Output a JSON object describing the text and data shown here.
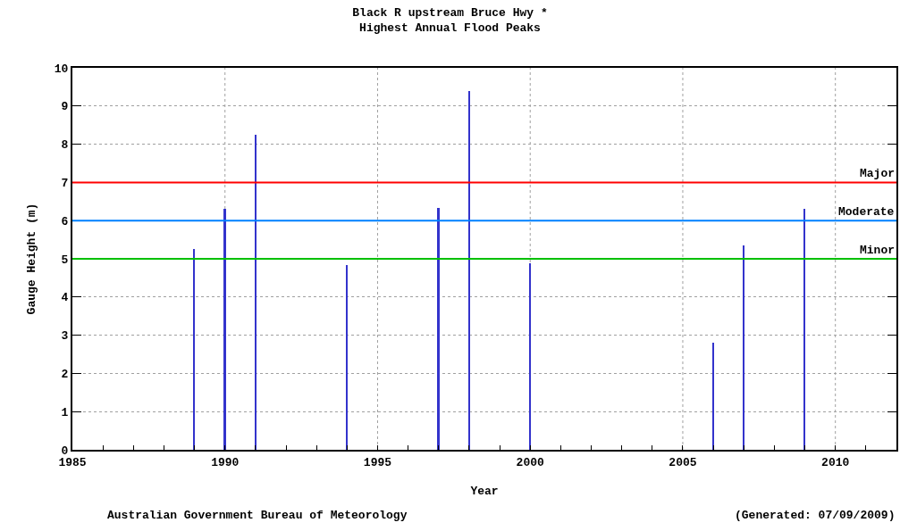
{
  "chart_data": {
    "type": "bar",
    "title": "Black R upstream Bruce Hwy *\nHighest Annual Flood Peaks",
    "xlabel": "Year",
    "ylabel": "Gauge Height (m)",
    "x": [
      1989,
      1990,
      1991,
      1994,
      1997,
      1998,
      2000,
      2006,
      2007,
      2009
    ],
    "values": [
      5.25,
      6.3,
      8.25,
      4.83,
      6.34,
      9.39,
      4.88,
      2.8,
      5.35,
      6.3
    ],
    "color": "#3333cc",
    "xlim": [
      1985,
      2012
    ],
    "ylim": [
      0,
      10
    ],
    "xticks": [
      1985,
      {
        "value": 1986,
        "label": null
      },
      {
        "value": 1987,
        "label": null
      },
      {
        "value": 1988,
        "label": null
      },
      {
        "value": 1989,
        "label": null
      },
      1990,
      {
        "value": 1991,
        "label": null
      },
      {
        "value": 1992,
        "label": null
      },
      {
        "value": 1993,
        "label": null
      },
      {
        "value": 1994,
        "label": null
      },
      1995,
      {
        "value": 1996,
        "label": null
      },
      {
        "value": 1997,
        "label": null
      },
      {
        "value": 1998,
        "label": null
      },
      {
        "value": 1999,
        "label": null
      },
      2000,
      {
        "value": 2001,
        "label": null
      },
      {
        "value": 2002,
        "label": null
      },
      {
        "value": 2003,
        "label": null
      },
      {
        "value": 2004,
        "label": null
      },
      2005,
      {
        "value": 2006,
        "label": null
      },
      {
        "value": 2007,
        "label": null
      },
      {
        "value": 2008,
        "label": null
      },
      {
        "value": 2009,
        "label": null
      },
      2010,
      {
        "value": 2011,
        "label": null
      }
    ],
    "yticks": [
      0,
      1,
      2,
      3,
      4,
      5,
      6,
      7,
      8,
      9,
      10
    ],
    "grid": true,
    "ref_lines": [
      {
        "axis": "y",
        "value": 7,
        "label": "Major",
        "color": "#ff0000"
      },
      {
        "axis": "y",
        "value": 6,
        "label": "Moderate",
        "color": "#0080ff"
      },
      {
        "axis": "y",
        "value": 5,
        "label": "Minor",
        "color": "#00c000"
      }
    ],
    "annotations": [
      "Australian Government Bureau of Meteorology",
      "(Generated: 07/09/2009)"
    ]
  }
}
